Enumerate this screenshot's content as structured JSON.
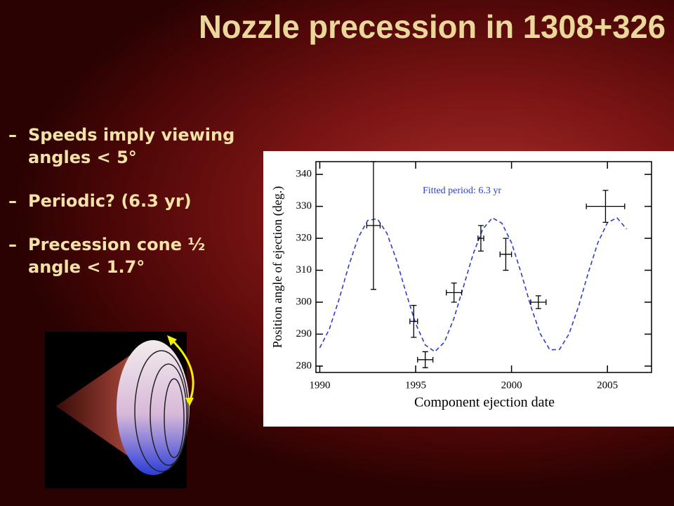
{
  "title": "Nozzle precession in 1308+326",
  "bullets": [
    "Speeds imply viewing angles < 5°",
    "Periodic? (6.3 yr)",
    "Precession cone ½ angle < 1.7°"
  ],
  "chart_data": {
    "type": "scatter",
    "xlabel": "Component ejection date",
    "ylabel": "Position angle of ejection (deg.)",
    "annotation": "Fitted period: 6.3 yr",
    "xlim": [
      1989.8,
      2007.3
    ],
    "ylim": [
      278,
      344
    ],
    "xticks": [
      1990,
      1995,
      2000,
      2005
    ],
    "yticks": [
      280,
      290,
      300,
      310,
      320,
      330,
      340
    ],
    "points": {
      "color": "#000000",
      "x": [
        1992.8,
        1994.9,
        1995.5,
        1997.0,
        1998.4,
        1999.7,
        2001.4,
        2004.9
      ],
      "values": [
        324,
        294,
        282,
        303,
        320,
        315,
        300,
        330
      ],
      "yerr": [
        20,
        5,
        2.5,
        3,
        4,
        5,
        2,
        5
      ],
      "xerr": [
        0.35,
        0.2,
        0.4,
        0.4,
        0.15,
        0.3,
        0.4,
        1
      ]
    },
    "fit": {
      "color": "#2b3fc8",
      "dashed": true,
      "x": [
        1990,
        1990.5,
        1991,
        1991.5,
        1992,
        1992.5,
        1993,
        1993.5,
        1994,
        1994.5,
        1995,
        1995.5,
        1996,
        1996.5,
        1997,
        1997.5,
        1998,
        1998.5,
        1999,
        1999.5,
        2000,
        2000.5,
        2001,
        2001.5,
        2002,
        2002.5,
        2003,
        2003.5,
        2004,
        2004.5,
        2005,
        2005.5,
        2006
      ],
      "values": [
        285.7,
        291.6,
        300.8,
        311.2,
        320.2,
        325.6,
        326.1,
        321.6,
        313.2,
        302.9,
        293.3,
        286.6,
        284.5,
        287.5,
        295.0,
        305.0,
        315.1,
        322.9,
        326.4,
        324.7,
        318.6,
        309.2,
        298.8,
        290.1,
        285.1,
        285.2,
        290.1,
        298.8,
        309.2,
        318.6,
        324.9,
        326.4,
        322.9
      ]
    }
  }
}
